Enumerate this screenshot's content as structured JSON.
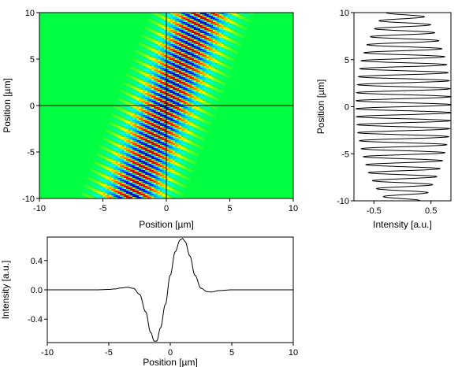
{
  "chart_data": [
    {
      "type": "heatmap",
      "xlabel": "Position [µm]",
      "ylabel": "Position [µm]",
      "xlim": [
        -10,
        10
      ],
      "ylim": [
        -10,
        10
      ],
      "xticks": [
        "-10",
        "-5",
        "0",
        "5",
        "10"
      ],
      "yticks": [
        "-10",
        "-5",
        "0",
        "5",
        "10"
      ],
      "crosshair": {
        "x": 0,
        "y": 0
      },
      "colormap": [
        "#000080",
        "#0000ff",
        "#00a0ff",
        "#00ffff",
        "#00ff40",
        "#ffff00",
        "#ff8000",
        "#ff0000",
        "#800000"
      ],
      "background": "#00ff40",
      "pattern": {
        "description": "tilted interference fringes",
        "center_line": {
          "x_at_y_min": -2.8,
          "x_at_y_max": 2.8
        },
        "envelope_width": 1.6,
        "fringe_period_y": 0.85,
        "fringe_tilt": 0.55,
        "peak_intensity": 1.0
      }
    },
    {
      "type": "line",
      "xlabel": "Intensity [a.u.]",
      "ylabel": "Position [µm]",
      "xlim": [
        -0.85,
        0.85
      ],
      "ylim": [
        -10,
        10
      ],
      "xticks": [
        "-0.5",
        "0.5"
      ],
      "yticks": [
        "-10",
        "-5",
        "0",
        "5",
        "10"
      ],
      "profile": {
        "description": "oscillating intensity along position",
        "period": 0.85,
        "amplitude_at_y": [
          [
            -10,
            0.28
          ],
          [
            -9,
            0.45
          ],
          [
            -7,
            0.62
          ],
          [
            -5,
            0.72
          ],
          [
            -3,
            0.8
          ],
          [
            0,
            0.84
          ],
          [
            3,
            0.8
          ],
          [
            5,
            0.74
          ],
          [
            7,
            0.62
          ],
          [
            9,
            0.45
          ],
          [
            10,
            0.3
          ]
        ],
        "offset": 0.02
      }
    },
    {
      "type": "line",
      "xlabel": "Position [µm]",
      "ylabel": "Intensity [a.u.]",
      "xlim": [
        -10,
        10
      ],
      "ylim": [
        -0.72,
        0.72
      ],
      "xticks": [
        "-10",
        "-5",
        "0",
        "5",
        "10"
      ],
      "yticks": [
        "0.4",
        "0.0",
        "-0.4"
      ],
      "series": [
        {
          "x": [
            -10,
            -6,
            -5,
            -4.5,
            -4,
            -3.5,
            -3,
            -2.5,
            -2,
            -1.6,
            -1.3,
            -1.1,
            -0.8,
            -0.4,
            0,
            0.4,
            0.8,
            1.0,
            1.2,
            1.6,
            2,
            2.5,
            3,
            3.3,
            4,
            5,
            6,
            10
          ],
          "y": [
            0.0,
            0.0,
            0.005,
            0.012,
            0.025,
            0.035,
            0.02,
            -0.06,
            -0.3,
            -0.58,
            -0.7,
            -0.7,
            -0.52,
            -0.2,
            0.2,
            0.52,
            0.68,
            0.7,
            0.66,
            0.46,
            0.2,
            0.02,
            -0.025,
            -0.03,
            -0.01,
            0.0,
            0.0,
            0.0
          ]
        }
      ]
    }
  ]
}
